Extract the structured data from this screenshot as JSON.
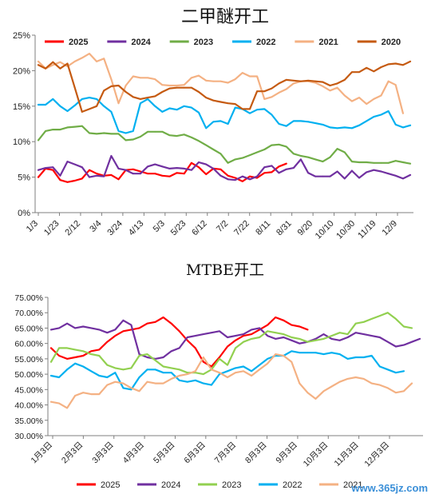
{
  "chart_data": [
    {
      "type": "line",
      "title": "二甲醚开工",
      "ylim": [
        0,
        25
      ],
      "y_tick_labels": [
        "0%",
        "5%",
        "10%",
        "15%",
        "20%",
        "25%"
      ],
      "x_tick_labels": [
        "1/3",
        "1/23",
        "2/12",
        "3/4",
        "3/24",
        "4/13",
        "5/3",
        "5/23",
        "6/12",
        "7/2",
        "7/22",
        "8/11",
        "8/31",
        "9/20",
        "10/10",
        "10/30",
        "11/19",
        "12/9"
      ],
      "legend_position": "top",
      "grid": false,
      "series": [
        {
          "name": "2025",
          "color": "#ff0000",
          "values": [
            5.0,
            6.2,
            6.0,
            4.6,
            4.3,
            4.5,
            4.8,
            6.0,
            5.5,
            5.2,
            5.3,
            4.7,
            6.0,
            6.1,
            5.8,
            5.5,
            5.5,
            5.2,
            5.1,
            5.6,
            5.5,
            7.0,
            6.4,
            5.4,
            6.2,
            6.1,
            5.2,
            4.9,
            4.4,
            5.1,
            4.9,
            5.6,
            5.7,
            6.5,
            6.9
          ]
        },
        {
          "name": "2024",
          "color": "#7030a0",
          "values": [
            6.0,
            6.3,
            6.4,
            5.2,
            7.2,
            6.8,
            6.4,
            5.0,
            5.2,
            5.1,
            8.0,
            6.2,
            6.0,
            5.5,
            5.5,
            6.5,
            6.8,
            6.5,
            6.2,
            6.3,
            6.2,
            6.0,
            7.1,
            6.8,
            6.2,
            5.2,
            4.7,
            4.6,
            5.1,
            4.7,
            5.1,
            6.4,
            6.6,
            5.6,
            6.1,
            6.3,
            7.5,
            5.6,
            5.1,
            5.1,
            5.1,
            5.8,
            4.8,
            5.9,
            4.9,
            5.7,
            6.0,
            5.8,
            5.5,
            5.2,
            4.8,
            5.3
          ]
        },
        {
          "name": "2023",
          "color": "#70ad47",
          "values": [
            10.2,
            11.5,
            11.7,
            11.7,
            12.0,
            12.1,
            12.2,
            11.2,
            11.1,
            11.2,
            11.1,
            11.1,
            10.2,
            10.3,
            10.7,
            11.4,
            11.4,
            11.4,
            10.9,
            10.8,
            11.0,
            10.6,
            10.1,
            9.5,
            8.9,
            8.3,
            7.0,
            7.5,
            7.7,
            8.1,
            8.5,
            8.9,
            9.5,
            9.6,
            9.3,
            8.3,
            8.0,
            7.8,
            7.5,
            7.2,
            7.8,
            9.0,
            8.5,
            7.2,
            7.1,
            7.1,
            7.0,
            7.0,
            7.0,
            7.3,
            7.1,
            6.9
          ]
        },
        {
          "name": "2022",
          "color": "#00b0f0",
          "values": [
            15.2,
            15.2,
            16.0,
            15.0,
            14.3,
            15.1,
            16.0,
            16.2,
            16.0,
            15.0,
            14.2,
            11.5,
            11.2,
            11.5,
            15.4,
            16.0,
            15.0,
            14.2,
            14.7,
            14.5,
            15.0,
            14.8,
            14.1,
            11.9,
            12.8,
            12.9,
            12.5,
            14.8,
            14.6,
            14.0,
            14.5,
            14.6,
            13.8,
            12.5,
            12.2,
            12.9,
            12.9,
            12.8,
            12.6,
            12.4,
            12.0,
            11.9,
            12.0,
            11.9,
            12.3,
            12.9,
            13.5,
            13.8,
            14.3,
            12.4,
            12.0,
            12.3
          ]
        },
        {
          "name": "2021",
          "color": "#f4b183",
          "values": [
            21.3,
            20.3,
            20.8,
            21.2,
            20.6,
            21.3,
            21.8,
            22.4,
            21.3,
            21.7,
            18.8,
            15.4,
            17.9,
            19.2,
            19.0,
            19.0,
            18.8,
            18.0,
            17.9,
            17.9,
            18.0,
            19.0,
            19.3,
            18.6,
            18.5,
            18.5,
            18.3,
            18.8,
            19.7,
            19.2,
            19.2,
            16.0,
            16.3,
            16.9,
            17.4,
            18.2,
            18.5,
            18.5,
            18.3,
            17.8,
            17.2,
            17.6,
            16.5,
            15.7,
            16.2,
            15.3,
            16.0,
            16.5,
            18.5,
            18.0,
            14.0
          ]
        },
        {
          "name": "2020",
          "color": "#c55a11",
          "values": [
            20.8,
            20.3,
            21.2,
            20.3,
            21.0,
            17.6,
            14.2,
            14.6,
            15.0,
            17.2,
            17.8,
            17.9,
            17.0,
            16.3,
            16.0,
            16.2,
            16.4,
            17.0,
            17.5,
            17.6,
            17.6,
            17.6,
            17.0,
            16.2,
            15.8,
            15.6,
            15.4,
            15.3,
            14.6,
            14.6,
            17.1,
            17.1,
            17.5,
            18.2,
            18.7,
            18.6,
            18.5,
            18.6,
            18.5,
            18.4,
            17.9,
            18.2,
            18.7,
            19.8,
            19.8,
            20.4,
            19.9,
            20.5,
            20.9,
            21.0,
            20.8,
            21.3
          ]
        }
      ]
    },
    {
      "type": "line",
      "title": "MTBE开工",
      "ylim": [
        30,
        75
      ],
      "y_tick_labels": [
        "30.00%",
        "35.00%",
        "40.00%",
        "45.00%",
        "50.00%",
        "55.00%",
        "60.00%",
        "65.00%",
        "70.00%",
        "75.00%"
      ],
      "x_tick_labels": [
        "1月3日",
        "2月3日",
        "3月3日",
        "4月3日",
        "5月3日",
        "6月3日",
        "7月3日",
        "8月3日",
        "9月3日",
        "10月3日",
        "11月3日",
        "12月3日"
      ],
      "legend_position": "bottom",
      "grid": false,
      "series": [
        {
          "name": "2025",
          "color": "#ff0000",
          "values": [
            58.5,
            56.0,
            55.0,
            55.5,
            56.0,
            57.5,
            58.0,
            60.5,
            62.5,
            64.0,
            64.5,
            65.0,
            66.5,
            67.0,
            68.5,
            66.5,
            64.0,
            61.0,
            58.5,
            54.0,
            52.5,
            55.5,
            59.0,
            61.0,
            62.5,
            63.0,
            64.5,
            66.0,
            68.5,
            67.5,
            66.0,
            65.5,
            64.5
          ]
        },
        {
          "name": "2024",
          "color": "#7030a0",
          "values": [
            64.5,
            65.0,
            66.5,
            65.0,
            65.5,
            65.0,
            64.5,
            63.5,
            64.5,
            67.5,
            66.0,
            56.5,
            55.5,
            55.0,
            55.5,
            57.5,
            58.5,
            62.0,
            62.5,
            63.0,
            63.5,
            64.0,
            62.0,
            62.5,
            63.0,
            64.5,
            65.0,
            62.5,
            61.5,
            62.0,
            61.0,
            60.0,
            60.5,
            61.5,
            63.0,
            61.5,
            61.0,
            62.0,
            63.5,
            63.0,
            62.5,
            62.0,
            60.5,
            59.0,
            59.5,
            60.5,
            61.5
          ]
        },
        {
          "name": "2023",
          "color": "#92d050",
          "values": [
            54.0,
            58.5,
            58.5,
            58.0,
            57.5,
            56.5,
            56.0,
            53.0,
            52.0,
            51.5,
            52.0,
            56.0,
            56.5,
            54.5,
            52.5,
            52.0,
            51.5,
            50.5,
            50.5,
            50.0,
            51.5,
            55.0,
            53.0,
            58.5,
            60.5,
            61.5,
            62.0,
            64.0,
            63.5,
            63.0,
            62.0,
            61.5,
            60.5,
            61.0,
            61.5,
            62.5,
            63.5,
            63.0,
            66.5,
            67.0,
            68.0,
            69.0,
            70.0,
            68.0,
            65.5,
            65.0
          ]
        },
        {
          "name": "2022",
          "color": "#00b0f0",
          "values": [
            49.5,
            49.0,
            51.5,
            53.5,
            52.5,
            51.0,
            49.5,
            49.0,
            50.5,
            45.5,
            45.0,
            49.0,
            51.5,
            51.5,
            50.5,
            50.5,
            48.0,
            47.5,
            48.0,
            47.0,
            46.5,
            50.0,
            51.0,
            52.0,
            52.5,
            51.0,
            53.0,
            55.0,
            56.0,
            56.0,
            57.5,
            57.0,
            57.0,
            57.0,
            56.5,
            57.0,
            56.5,
            55.0,
            55.5,
            55.5,
            56.0,
            52.5,
            51.5,
            50.5,
            51.0
          ]
        },
        {
          "name": "2021",
          "color": "#f4b183",
          "values": [
            41.0,
            40.5,
            39.0,
            43.0,
            44.0,
            43.5,
            43.5,
            46.5,
            47.5,
            47.0,
            45.5,
            44.5,
            47.5,
            47.0,
            47.0,
            48.5,
            49.5,
            50.0,
            51.0,
            55.5,
            51.5,
            50.5,
            49.0,
            50.5,
            51.0,
            49.5,
            51.5,
            53.5,
            56.5,
            56.0,
            54.0,
            47.0,
            44.0,
            42.0,
            44.5,
            46.0,
            47.5,
            48.5,
            49.0,
            48.5,
            47.0,
            46.5,
            45.5,
            44.0,
            44.5,
            47.0
          ]
        }
      ]
    }
  ],
  "watermark": "www.365jz.com"
}
